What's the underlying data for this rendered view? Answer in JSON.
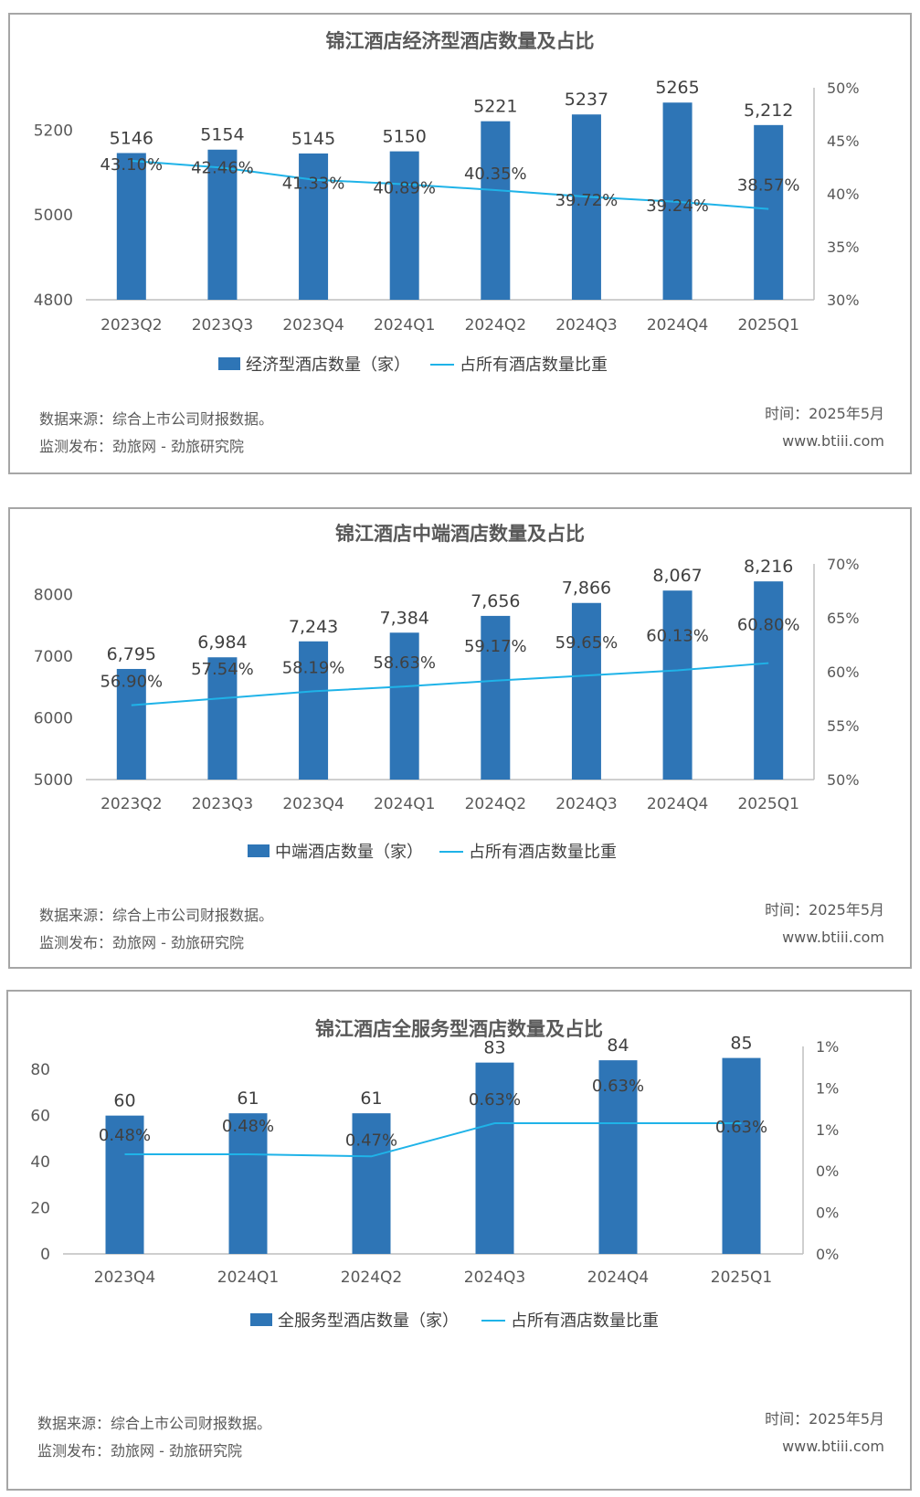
{
  "charts": [
    {
      "title": "锦江酒店经济型酒店数量及占比",
      "legend": {
        "bar": "经济型酒店数量（家）",
        "line": "占所有酒店数量比重"
      },
      "footer": {
        "source": "数据来源：综合上市公司财报数据。",
        "publisher": "监测发布：劲旅网 - 劲旅研究院",
        "time": "时间：2025年5月",
        "site": "www.btiii.com"
      }
    },
    {
      "title": "锦江酒店中端酒店数量及占比",
      "legend": {
        "bar": "中端酒店数量（家）",
        "line": "占所有酒店数量比重"
      },
      "footer": {
        "source": "数据来源：综合上市公司财报数据。",
        "publisher": "监测发布：劲旅网 - 劲旅研究院",
        "time": "时间：2025年5月",
        "site": "www.btiii.com"
      }
    },
    {
      "title": "锦江酒店全服务型酒店数量及占比",
      "legend": {
        "bar": "全服务型酒店数量（家）",
        "line": "占所有酒店数量比重"
      },
      "footer": {
        "source": "数据来源：综合上市公司财报数据。",
        "publisher": "监测发布：劲旅网 - 劲旅研究院",
        "time": "时间：2025年5月",
        "site": "www.btiii.com"
      }
    }
  ],
  "colors": {
    "bar": "#2e75b6",
    "line": "#1fb3e8",
    "axis": "#bfbfbf",
    "text": "#404040",
    "tick": "#595959"
  },
  "chart_data": [
    {
      "type": "bar",
      "title": "锦江酒店经济型酒店数量及占比",
      "categories": [
        "2023Q2",
        "2023Q3",
        "2023Q4",
        "2024Q1",
        "2024Q2",
        "2024Q3",
        "2024Q4",
        "2025Q1"
      ],
      "series": [
        {
          "name": "经济型酒店数量（家）",
          "type": "bar",
          "axis": "left",
          "values": [
            5146,
            5154,
            5145,
            5150,
            5221,
            5237,
            5265,
            5212
          ],
          "labels": [
            "5146",
            "5154",
            "5145",
            "5150",
            "5221",
            "5237",
            "5265",
            "5,212"
          ]
        },
        {
          "name": "占所有酒店数量比重",
          "type": "line",
          "axis": "right",
          "values": [
            43.1,
            42.46,
            41.33,
            40.89,
            40.35,
            39.72,
            39.24,
            38.57
          ],
          "labels": [
            "43.10%",
            "42.46%",
            "41.33%",
            "40.89%",
            "40.35%",
            "39.72%",
            "39.24%",
            "38.57%"
          ]
        }
      ],
      "y_left": {
        "min": 4800,
        "max": 5300,
        "ticks": [
          4800,
          5000,
          5200
        ],
        "tick_labels": [
          "4800",
          "5000",
          "5200"
        ]
      },
      "y_right": {
        "min": 30,
        "max": 50,
        "ticks": [
          30,
          35,
          40,
          45,
          50
        ],
        "tick_labels": [
          "30%",
          "35%",
          "40%",
          "45%",
          "50%"
        ]
      },
      "legend": "bottom",
      "grid": false
    },
    {
      "type": "bar",
      "title": "锦江酒店中端酒店数量及占比",
      "categories": [
        "2023Q2",
        "2023Q3",
        "2023Q4",
        "2024Q1",
        "2024Q2",
        "2024Q3",
        "2024Q4",
        "2025Q1"
      ],
      "series": [
        {
          "name": "中端酒店数量（家）",
          "type": "bar",
          "axis": "left",
          "values": [
            6795,
            6984,
            7243,
            7384,
            7656,
            7866,
            8067,
            8216
          ],
          "labels": [
            "6,795",
            "6,984",
            "7,243",
            "7,384",
            "7,656",
            "7,866",
            "8,067",
            "8,216"
          ]
        },
        {
          "name": "占所有酒店数量比重",
          "type": "line",
          "axis": "right",
          "values": [
            56.9,
            57.54,
            58.19,
            58.63,
            59.17,
            59.65,
            60.13,
            60.8
          ],
          "labels": [
            "56.90%",
            "57.54%",
            "58.19%",
            "58.63%",
            "59.17%",
            "59.65%",
            "60.13%",
            "60.80%"
          ]
        }
      ],
      "y_left": {
        "min": 5000,
        "max": 8500,
        "ticks": [
          5000,
          6000,
          7000,
          8000
        ],
        "tick_labels": [
          "5000",
          "6000",
          "7000",
          "8000"
        ]
      },
      "y_right": {
        "min": 50,
        "max": 70,
        "ticks": [
          50,
          55,
          60,
          65,
          70
        ],
        "tick_labels": [
          "50%",
          "55%",
          "60%",
          "65%",
          "70%"
        ]
      },
      "legend": "bottom",
      "grid": false
    },
    {
      "type": "bar",
      "title": "锦江酒店全服务型酒店数量及占比",
      "categories": [
        "2023Q4",
        "2024Q1",
        "2024Q2",
        "2024Q3",
        "2024Q4",
        "2025Q1"
      ],
      "series": [
        {
          "name": "全服务型酒店数量（家）",
          "type": "bar",
          "axis": "left",
          "values": [
            60,
            61,
            61,
            83,
            84,
            85
          ],
          "labels": [
            "60",
            "61",
            "61",
            "83",
            "84",
            "85"
          ]
        },
        {
          "name": "占所有酒店数量比重",
          "type": "line",
          "axis": "right",
          "values": [
            0.48,
            0.48,
            0.47,
            0.63,
            0.63,
            0.63
          ],
          "labels": [
            "0.48%",
            "0.48%",
            "0.47%",
            "0.63%",
            "0.63%",
            "0.63%"
          ]
        }
      ],
      "y_left": {
        "min": 0,
        "max": 90,
        "ticks": [
          0,
          20,
          40,
          60,
          80
        ],
        "tick_labels": [
          "0",
          "20",
          "40",
          "60",
          "80"
        ]
      },
      "y_right": {
        "min": 0,
        "max": 1.0,
        "ticks": [
          0,
          0.2,
          0.4,
          0.6,
          0.8,
          1.0
        ],
        "tick_labels": [
          "0%",
          "0%",
          "0%",
          "1%",
          "1%",
          "1%"
        ]
      },
      "legend": "bottom",
      "grid": false
    }
  ]
}
